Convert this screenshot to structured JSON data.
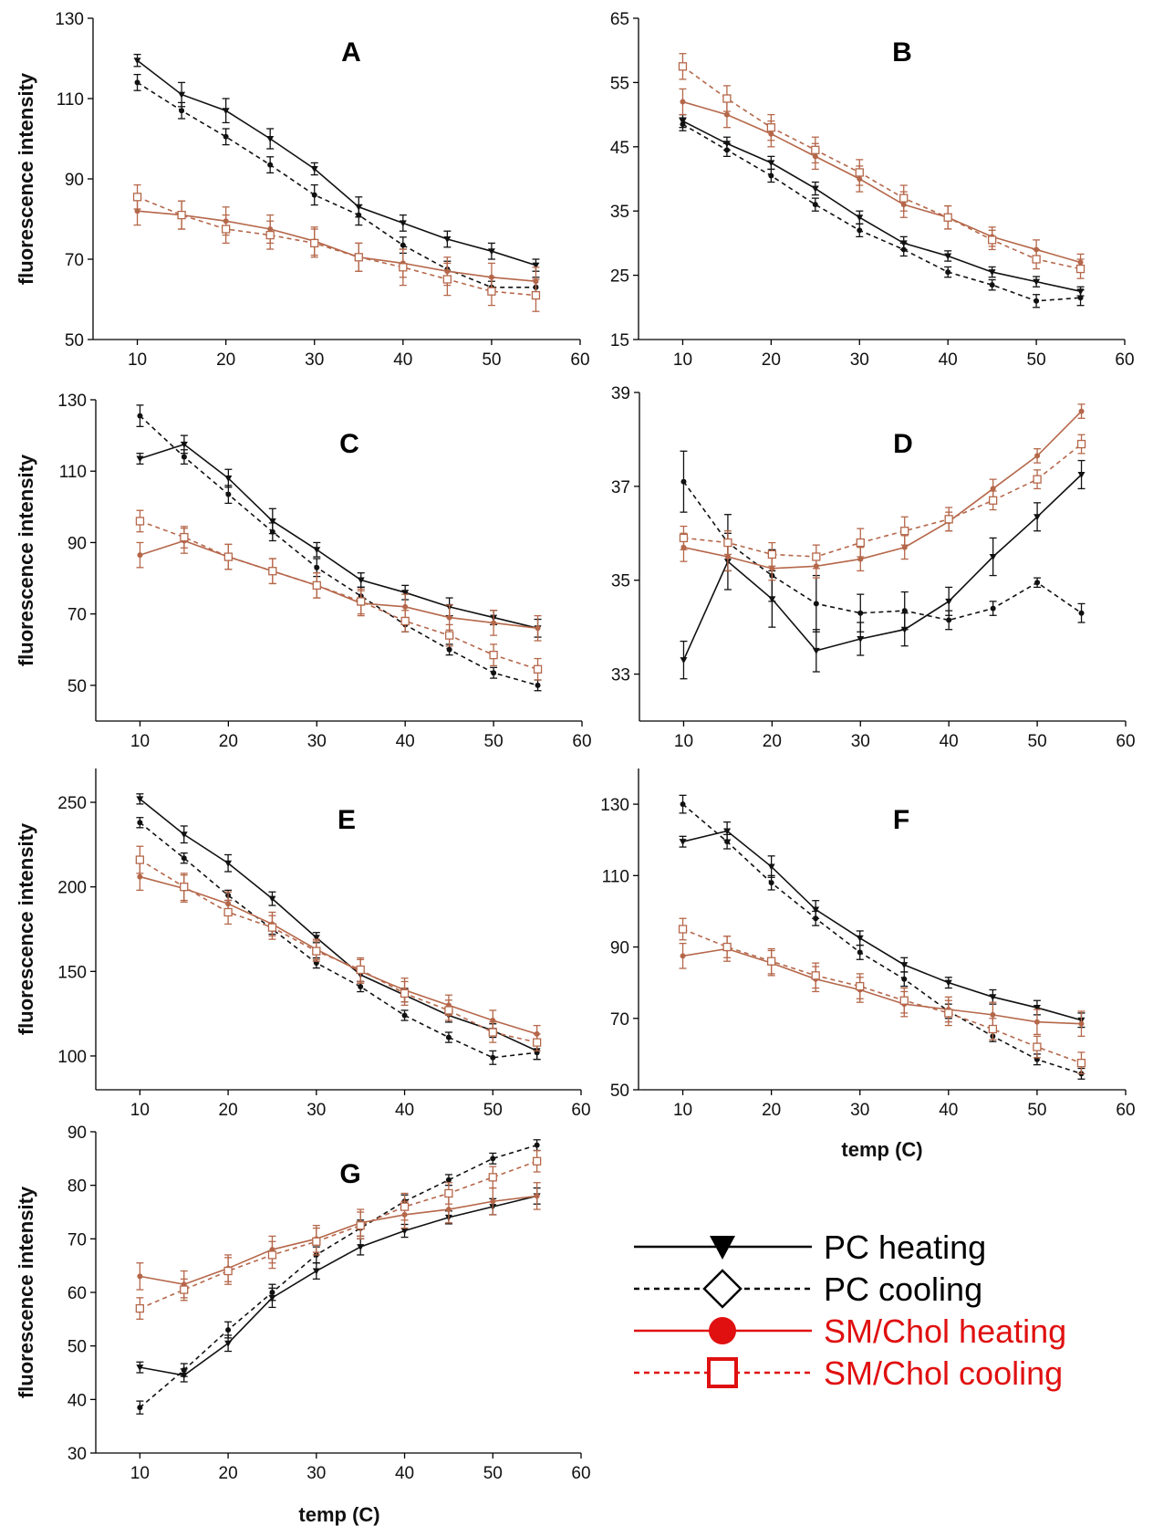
{
  "colors": {
    "pc": "#111111",
    "sm": "#b5674a",
    "legend_sm": "#e01010"
  },
  "legend": {
    "items": [
      {
        "label": "PC heating",
        "color": "#000000",
        "dash": false,
        "marker": "triangle-down"
      },
      {
        "label": "PC cooling",
        "color": "#000000",
        "dash": true,
        "marker": "diamond-open"
      },
      {
        "label": "SM/Chol heating",
        "color": "#e01010",
        "dash": false,
        "marker": "circle-filled"
      },
      {
        "label": "SM/Chol cooling",
        "color": "#e01010",
        "dash": true,
        "marker": "square-open"
      }
    ]
  },
  "chart_data": [
    {
      "type": "line",
      "title": "A",
      "ylabel": "fluorescence intensity",
      "xlabel": "",
      "xlim": [
        5,
        60
      ],
      "ylim": [
        50,
        130
      ],
      "xticks": [
        10,
        20,
        30,
        40,
        50,
        60
      ],
      "yticks": [
        50,
        70,
        90,
        110,
        130
      ],
      "x": [
        10,
        15,
        20,
        25,
        30,
        35,
        40,
        45,
        50,
        55
      ],
      "series": [
        {
          "name": "PC heating",
          "values": [
            119.5,
            111,
            107,
            100,
            92.5,
            83,
            79,
            75,
            72,
            68.5
          ],
          "err": [
            1.5,
            3,
            3,
            2.5,
            1.5,
            2.5,
            2,
            2,
            2,
            1.5
          ]
        },
        {
          "name": "PC cooling",
          "values": [
            114,
            107,
            100.5,
            93.5,
            86,
            81,
            73.5,
            67.5,
            63,
            63
          ],
          "err": [
            2,
            2,
            2,
            2,
            2.5,
            2.5,
            2,
            2,
            1.5,
            2.5
          ]
        },
        {
          "name": "SM/Chol heating",
          "values": [
            82,
            81,
            79.5,
            77.5,
            74.5,
            70.5,
            69,
            67,
            65.5,
            64.5
          ],
          "err": [
            3.5,
            3.5,
            3.5,
            3.5,
            3.5,
            3.5,
            3.5,
            3.5,
            3.5,
            3.5
          ]
        },
        {
          "name": "SM/Chol cooling",
          "values": [
            85.5,
            81,
            77.5,
            76,
            74,
            70.5,
            68,
            65,
            62,
            61
          ],
          "err": [
            3,
            3.5,
            3.5,
            3.5,
            3.5,
            3.5,
            4.5,
            4,
            3.5,
            4
          ]
        }
      ]
    },
    {
      "type": "line",
      "title": "B",
      "ylabel": "",
      "xlabel": "",
      "xlim": [
        5,
        60
      ],
      "ylim": [
        15,
        65
      ],
      "xticks": [
        10,
        20,
        30,
        40,
        50,
        60
      ],
      "yticks": [
        15,
        25,
        35,
        45,
        55,
        65
      ],
      "x": [
        10,
        15,
        20,
        25,
        30,
        35,
        40,
        45,
        50,
        55
      ],
      "series": [
        {
          "name": "PC heating",
          "values": [
            49,
            45.5,
            42.5,
            38.5,
            34,
            30,
            28,
            25.5,
            24,
            22.5
          ],
          "err": [
            1,
            1,
            1,
            1,
            1,
            1,
            0.8,
            0.8,
            0.8,
            0.7
          ]
        },
        {
          "name": "PC cooling",
          "values": [
            48.5,
            44.5,
            40.5,
            36,
            32,
            29,
            25.5,
            23.5,
            21,
            21.5
          ],
          "err": [
            1,
            1,
            1,
            1,
            1,
            1,
            0.8,
            0.8,
            1,
            1.2
          ]
        },
        {
          "name": "SM/Chol heating",
          "values": [
            52,
            50,
            47,
            43.5,
            40,
            36,
            34,
            31,
            29,
            27
          ],
          "err": [
            2,
            2,
            2,
            2,
            2,
            2,
            1.8,
            1.5,
            1.5,
            1.3
          ]
        },
        {
          "name": "SM/Chol cooling",
          "values": [
            57.5,
            52.5,
            48,
            44.5,
            41,
            37,
            34,
            30.5,
            27.5,
            26
          ],
          "err": [
            2,
            2,
            2,
            2,
            2,
            2,
            1.8,
            1.5,
            1.5,
            1.5
          ]
        }
      ]
    },
    {
      "type": "line",
      "title": "C",
      "ylabel": "fluorescence intensity",
      "xlabel": "",
      "xlim": [
        5,
        60
      ],
      "ylim": [
        40,
        130
      ],
      "xticks": [
        10,
        20,
        30,
        40,
        50,
        60
      ],
      "yticks": [
        50,
        70,
        90,
        110,
        130
      ],
      "x": [
        10,
        15,
        20,
        25,
        30,
        35,
        40,
        45,
        50,
        55
      ],
      "series": [
        {
          "name": "PC heating",
          "values": [
            113.5,
            117.5,
            108,
            96,
            88,
            79.5,
            76,
            72,
            69,
            66
          ],
          "err": [
            1.5,
            2.5,
            2.5,
            3.5,
            2,
            2,
            2,
            2.5,
            2,
            2.5
          ]
        },
        {
          "name": "PC cooling",
          "values": [
            125.5,
            114,
            103.5,
            93,
            83,
            75,
            67,
            60,
            53.5,
            50
          ],
          "err": [
            3,
            2,
            2.5,
            2.5,
            2.5,
            2.5,
            2,
            1.5,
            1.5,
            1.5
          ]
        },
        {
          "name": "SM/Chol heating",
          "values": [
            86.5,
            90.5,
            86,
            82,
            78,
            73,
            72,
            69,
            67.5,
            66
          ],
          "err": [
            3.5,
            3.5,
            3.5,
            3.5,
            3.5,
            3.5,
            3.5,
            3.5,
            3.5,
            3.5
          ]
        },
        {
          "name": "SM/Chol cooling",
          "values": [
            96,
            91.5,
            86,
            82,
            78,
            73.5,
            68,
            64,
            58.5,
            54.5
          ],
          "err": [
            3,
            3,
            3.5,
            3.5,
            3.5,
            3.5,
            3,
            3,
            3,
            3
          ]
        }
      ]
    },
    {
      "type": "line",
      "title": "D",
      "ylabel": "",
      "xlabel": "",
      "xlim": [
        5,
        60
      ],
      "ylim": [
        32,
        39
      ],
      "xticks": [
        10,
        20,
        30,
        40,
        50,
        60
      ],
      "yticks": [
        33,
        35,
        37,
        39
      ],
      "x": [
        10,
        15,
        20,
        25,
        30,
        35,
        40,
        45,
        50,
        55
      ],
      "series": [
        {
          "name": "PC heating",
          "values": [
            33.3,
            35.4,
            34.6,
            33.5,
            33.75,
            33.95,
            34.55,
            35.5,
            36.35,
            37.25
          ],
          "err": [
            0.4,
            0.6,
            0.6,
            0.45,
            0.35,
            0.35,
            0.3,
            0.4,
            0.3,
            0.3
          ]
        },
        {
          "name": "PC cooling",
          "values": [
            37.1,
            35.8,
            35.1,
            34.5,
            34.3,
            34.35,
            34.15,
            34.4,
            34.95,
            34.3
          ],
          "err": [
            0.65,
            0.6,
            0.55,
            0.6,
            0.4,
            0.4,
            0.2,
            0.15,
            0.1,
            0.2
          ]
        },
        {
          "name": "SM/Chol heating",
          "values": [
            35.7,
            35.5,
            35.25,
            35.3,
            35.45,
            35.7,
            36.25,
            36.95,
            37.65,
            38.6
          ],
          "err": [
            0.3,
            0.3,
            0.25,
            0.25,
            0.25,
            0.25,
            0.2,
            0.2,
            0.15,
            0.15
          ]
        },
        {
          "name": "SM/Chol cooling",
          "values": [
            35.9,
            35.8,
            35.55,
            35.5,
            35.8,
            36.05,
            36.3,
            36.7,
            37.15,
            37.9
          ],
          "err": [
            0.25,
            0.25,
            0.25,
            0.25,
            0.3,
            0.3,
            0.25,
            0.2,
            0.2,
            0.2
          ]
        }
      ]
    },
    {
      "type": "line",
      "title": "E",
      "ylabel": "fluorescence intensity",
      "xlabel": "",
      "xlim": [
        5,
        60
      ],
      "ylim": [
        80,
        270
      ],
      "xticks": [
        10,
        20,
        30,
        40,
        50,
        60
      ],
      "yticks": [
        100,
        150,
        200,
        250
      ],
      "x": [
        10,
        15,
        20,
        25,
        30,
        35,
        40,
        45,
        50,
        55
      ],
      "series": [
        {
          "name": "PC heating",
          "values": [
            252,
            231,
            214,
            193,
            170,
            148,
            136,
            124,
            115,
            103
          ],
          "err": [
            3,
            5,
            5,
            4,
            3,
            4,
            4,
            4,
            4,
            5
          ]
        },
        {
          "name": "PC cooling",
          "values": [
            238,
            217,
            195,
            175,
            155,
            141,
            124,
            111,
            99,
            102
          ],
          "err": [
            3,
            3,
            3,
            3,
            3,
            3,
            3,
            3,
            4,
            4
          ]
        },
        {
          "name": "SM/Chol heating",
          "values": [
            206,
            199,
            190,
            178,
            163,
            150,
            139,
            130,
            121,
            113
          ],
          "err": [
            8,
            8,
            7,
            7,
            6,
            7,
            7,
            6,
            6,
            5
          ]
        },
        {
          "name": "SM/Chol cooling",
          "values": [
            216,
            200,
            185,
            176,
            162,
            151,
            137,
            127,
            114,
            108
          ],
          "err": [
            8,
            8,
            7,
            7,
            6,
            7,
            7,
            6,
            6,
            5
          ]
        }
      ]
    },
    {
      "type": "line",
      "title": "F",
      "ylabel": "",
      "xlabel": "temp (C)",
      "xlim": [
        5,
        60
      ],
      "ylim": [
        50,
        140
      ],
      "xticks": [
        10,
        20,
        30,
        40,
        50,
        60
      ],
      "yticks": [
        50,
        70,
        90,
        110,
        130
      ],
      "x": [
        10,
        15,
        20,
        25,
        30,
        35,
        40,
        45,
        50,
        55
      ],
      "series": [
        {
          "name": "PC heating",
          "values": [
            119.5,
            122.5,
            112.5,
            100.5,
            92.5,
            85,
            80,
            76,
            73,
            69.5
          ],
          "err": [
            1.5,
            2.5,
            3,
            2.5,
            2,
            2,
            1.5,
            2,
            2,
            2
          ]
        },
        {
          "name": "PC cooling",
          "values": [
            130,
            119.5,
            108,
            98,
            88.5,
            81,
            72,
            65,
            58.5,
            54.5
          ],
          "err": [
            2.5,
            2,
            2,
            2,
            2,
            2,
            2,
            1.5,
            1.5,
            1.5
          ]
        },
        {
          "name": "SM/Chol heating",
          "values": [
            87.5,
            89.5,
            85.5,
            81,
            78,
            74,
            72.5,
            71,
            69,
            68.5
          ],
          "err": [
            3.5,
            3.5,
            3.5,
            3.5,
            3.5,
            3.5,
            3.5,
            3.5,
            3.5,
            3.5
          ]
        },
        {
          "name": "SM/Chol cooling",
          "values": [
            95,
            90,
            86,
            82,
            79,
            75,
            71.5,
            67,
            62,
            57.5
          ],
          "err": [
            3,
            3,
            3.5,
            3.5,
            3.5,
            3.5,
            3.5,
            3,
            3,
            3
          ]
        }
      ]
    },
    {
      "type": "line",
      "title": "G",
      "ylabel": "fluorescence intensity",
      "xlabel": "temp (C)",
      "xlim": [
        5,
        60
      ],
      "ylim": [
        30,
        90
      ],
      "xticks": [
        10,
        20,
        30,
        40,
        50,
        60
      ],
      "yticks": [
        30,
        40,
        50,
        60,
        70,
        80,
        90
      ],
      "x": [
        10,
        15,
        20,
        25,
        30,
        35,
        40,
        45,
        50,
        55
      ],
      "series": [
        {
          "name": "PC heating",
          "values": [
            46,
            44.5,
            50.5,
            59,
            64,
            68.5,
            71.5,
            74,
            76,
            78
          ],
          "err": [
            1,
            1.2,
            1.5,
            1.8,
            1.5,
            1.5,
            1.2,
            1.2,
            1.5,
            1.5
          ]
        },
        {
          "name": "PC cooling",
          "values": [
            38.5,
            45.5,
            53,
            60,
            67,
            72,
            77,
            81,
            85,
            87.5
          ],
          "err": [
            1.2,
            1.2,
            1.5,
            1.5,
            1.5,
            1.5,
            1.2,
            1,
            1,
            1
          ]
        },
        {
          "name": "SM/Chol heating",
          "values": [
            63,
            61.5,
            64.5,
            68,
            70,
            73,
            74.5,
            75.5,
            77,
            78
          ],
          "err": [
            2.5,
            2.5,
            2.5,
            2.5,
            2.5,
            2.5,
            2.5,
            2.5,
            2.5,
            2.5
          ]
        },
        {
          "name": "SM/Chol cooling",
          "values": [
            57,
            60.5,
            64,
            67,
            69.5,
            72.5,
            76,
            78.5,
            81.5,
            84.5
          ],
          "err": [
            2,
            2,
            2.5,
            2.5,
            2.5,
            2.5,
            2.5,
            2,
            2,
            2
          ]
        }
      ]
    }
  ]
}
